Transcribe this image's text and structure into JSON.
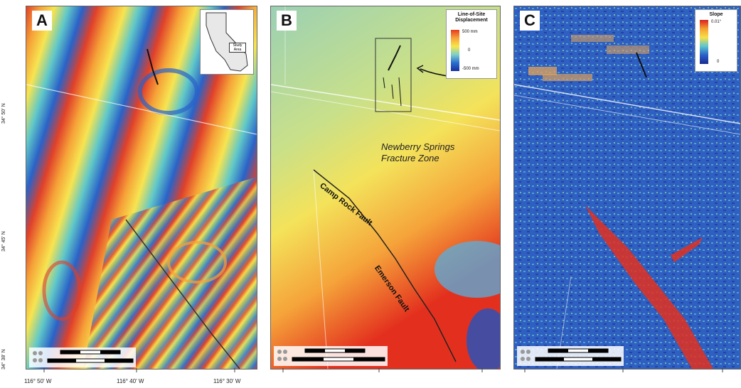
{
  "panels": {
    "a": {
      "letter": "A",
      "inset_label": "Study Area"
    },
    "b": {
      "letter": "B",
      "legend": {
        "title": "Line-of-Site Displacement",
        "max": "500 mm",
        "mid": "0",
        "min": "-500 mm",
        "colors": [
          "#e63a1f",
          "#f7a33a",
          "#f8e64a",
          "#7fd0c8",
          "#2a6fd0",
          "#1a2f9e"
        ]
      },
      "callout": "Newberry Springs Fracture Zone",
      "faults": [
        "Camp Rock Fault",
        "Emerson Fault"
      ]
    },
    "c": {
      "letter": "C",
      "legend": {
        "title": "Slope",
        "max": "0.01°",
        "min": "0",
        "colors": [
          "#d72020",
          "#f5a030",
          "#f7e04a",
          "#5bc4d0",
          "#2a60c8",
          "#1a2a90"
        ]
      }
    }
  },
  "axes": {
    "lat": [
      "34° 50' N",
      "34° 45' N",
      "34° 38' N"
    ],
    "lon": [
      "116° 50' W",
      "116° 40' W",
      "116° 30' W"
    ]
  }
}
